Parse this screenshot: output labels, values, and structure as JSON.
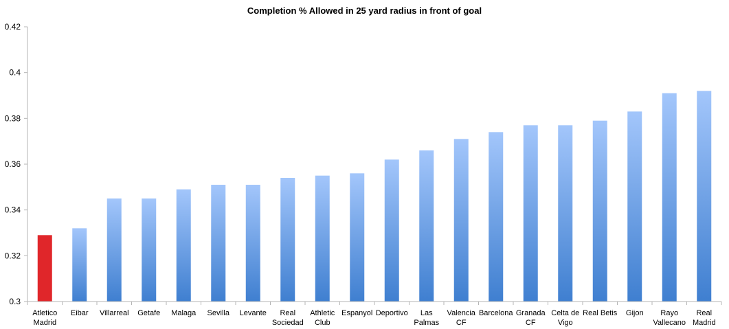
{
  "chart_data": {
    "type": "bar",
    "title": "Completion % Allowed in 25 yard radius in front of goal",
    "xlabel": "",
    "ylabel": "",
    "ylim": [
      0.3,
      0.42
    ],
    "yticks": [
      "0.3",
      "0.32",
      "0.34",
      "0.36",
      "0.38",
      "0.4",
      "0.42"
    ],
    "grid": false,
    "legend": "none",
    "categories": [
      "Atletico Madrid",
      "Eibar",
      "Villarreal",
      "Getafe",
      "Malaga",
      "Sevilla",
      "Levante",
      "Real Sociedad",
      "Athletic Club",
      "Espanyol",
      "Deportivo",
      "Las Palmas",
      "Valencia CF",
      "Barcelona",
      "Granada CF",
      "Celta de Vigo",
      "Real Betis",
      "Gijon",
      "Rayo Vallecano",
      "Real Madrid"
    ],
    "category_lines": [
      [
        "Atletico",
        "Madrid"
      ],
      [
        "Eibar"
      ],
      [
        "Villarreal"
      ],
      [
        "Getafe"
      ],
      [
        "Malaga"
      ],
      [
        "Sevilla"
      ],
      [
        "Levante"
      ],
      [
        "Real",
        "Sociedad"
      ],
      [
        "Athletic",
        "Club"
      ],
      [
        "Espanyol"
      ],
      [
        "Deportivo"
      ],
      [
        "Las",
        "Palmas"
      ],
      [
        "Valencia",
        "CF"
      ],
      [
        "Barcelona"
      ],
      [
        "Granada",
        "CF"
      ],
      [
        "Celta de",
        "Vigo"
      ],
      [
        "Real Betis"
      ],
      [
        "Gijon"
      ],
      [
        "Rayo",
        "Vallecano"
      ],
      [
        "Real",
        "Madrid"
      ]
    ],
    "values": [
      0.329,
      0.332,
      0.345,
      0.345,
      0.349,
      0.351,
      0.351,
      0.354,
      0.355,
      0.356,
      0.362,
      0.366,
      0.371,
      0.374,
      0.377,
      0.377,
      0.379,
      0.383,
      0.391,
      0.392
    ],
    "highlight_index": 0,
    "colors": {
      "highlight": "#e0262a",
      "bar_top": "#a3c6fb",
      "bar_bottom": "#3f7fd0",
      "axis": "#b5b5b5"
    }
  }
}
